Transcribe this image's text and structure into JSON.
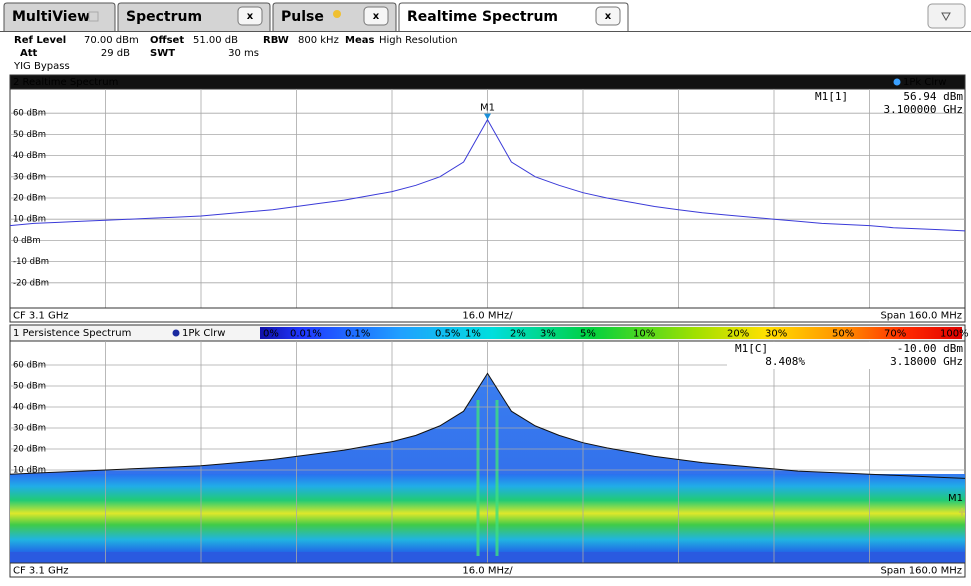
{
  "tabs": [
    {
      "label": "MultiView"
    },
    {
      "label": "Spectrum",
      "close": "x"
    },
    {
      "label": "Pulse",
      "close": "x"
    },
    {
      "label": "Realtime Spectrum",
      "close": "x"
    }
  ],
  "settings": [
    {
      "label": "Ref Level",
      "value": "70.00 dBm"
    },
    {
      "label": "Offset",
      "value": "51.00 dB"
    },
    {
      "label": "RBW",
      "value": "800 kHz"
    },
    {
      "label": "Meas",
      "value": "High Resolution"
    },
    {
      "label": "Att",
      "value": "29 dB"
    },
    {
      "label": "SWT",
      "value": "30 ms"
    }
  ],
  "note": "YIG Bypass",
  "chart_data": [
    {
      "type": "line",
      "title": "2 Realtime Spectrum",
      "x": [
        3.02,
        3.024,
        3.028,
        3.032,
        3.036,
        3.04,
        3.044,
        3.048,
        3.052,
        3.056,
        3.06,
        3.064,
        3.068,
        3.072,
        3.076,
        3.08,
        3.084,
        3.088,
        3.092,
        3.096,
        3.1,
        3.104,
        3.108,
        3.112,
        3.116,
        3.12,
        3.124,
        3.128,
        3.132,
        3.136,
        3.14,
        3.144,
        3.148,
        3.152,
        3.156,
        3.16,
        3.164,
        3.168,
        3.172,
        3.176,
        3.18
      ],
      "xlim": [
        3.02,
        3.18
      ],
      "series": [
        {
          "name": "1Pk Clrw",
          "color": "#3a3ad8",
          "values": [
            7,
            8,
            8.5,
            9,
            9.5,
            10,
            10.5,
            11,
            11.5,
            12.5,
            13.5,
            14.5,
            16,
            17.5,
            19,
            21,
            23,
            26,
            30,
            37,
            56.94,
            37,
            30,
            26,
            22.5,
            20,
            18,
            16,
            14.5,
            13,
            12,
            11,
            10,
            9,
            8,
            7.5,
            7,
            6,
            5.5,
            5,
            4.5
          ]
        }
      ],
      "ylim": [
        -30,
        70
      ],
      "yticks": [
        {
          "value": 60,
          "label": "60 dBm"
        },
        {
          "value": 50,
          "label": "50 dBm"
        },
        {
          "value": 40,
          "label": "40 dBm"
        },
        {
          "value": 30,
          "label": "30 dBm"
        },
        {
          "value": 20,
          "label": "20 dBm"
        },
        {
          "value": 10,
          "label": "10 dBm"
        },
        {
          "value": 0,
          "label": "0 dBm"
        },
        {
          "value": -10,
          "label": "-10 dBm"
        },
        {
          "value": -20,
          "label": "-20 dBm"
        }
      ],
      "grid": true,
      "marker": {
        "tag": "M1",
        "name": "M1[1]",
        "x": 3.1,
        "y": 56.94,
        "y_label": "56.94 dBm",
        "x_label": "3.100000 GHz"
      },
      "footer": {
        "left": "CF 3.1 GHz",
        "center": "16.0 MHz/",
        "right": "Span 160.0 MHz"
      }
    },
    {
      "type": "persistence",
      "title": "1 Persistence Spectrum",
      "x": [
        3.02,
        3.024,
        3.028,
        3.032,
        3.036,
        3.04,
        3.044,
        3.048,
        3.052,
        3.056,
        3.06,
        3.064,
        3.068,
        3.072,
        3.076,
        3.08,
        3.084,
        3.088,
        3.092,
        3.096,
        3.1,
        3.104,
        3.108,
        3.112,
        3.116,
        3.12,
        3.124,
        3.128,
        3.132,
        3.136,
        3.14,
        3.144,
        3.148,
        3.152,
        3.156,
        3.16,
        3.164,
        3.168,
        3.172,
        3.176,
        3.18
      ],
      "xlim": [
        3.02,
        3.18
      ],
      "series": [
        {
          "name": "1Pk Clrw",
          "color": "#111111",
          "values": [
            8,
            8.5,
            9,
            9.5,
            10,
            10.5,
            11,
            11.5,
            12,
            13,
            14,
            15,
            16.5,
            18,
            19.5,
            21.5,
            23.5,
            26.5,
            31,
            38,
            56,
            38,
            31,
            26.5,
            23,
            20.5,
            18.5,
            16.5,
            15,
            13.5,
            12.5,
            11.5,
            10.5,
            9.5,
            9,
            8.5,
            8,
            7.5,
            7,
            6.5,
            6
          ]
        }
      ],
      "ylim": [
        -30,
        70
      ],
      "yticks": [
        {
          "value": 60,
          "label": "60 dBm"
        },
        {
          "value": 50,
          "label": "50 dBm"
        },
        {
          "value": 40,
          "label": "40 dBm"
        },
        {
          "value": 30,
          "label": "30 dBm"
        },
        {
          "value": 20,
          "label": "20 dBm"
        },
        {
          "value": 10,
          "label": "10 dBm"
        }
      ],
      "grid": true,
      "color_scale": [
        "0%",
        "0.01%",
        "0.1%",
        "0.5%",
        "1%",
        "2%",
        "3%",
        "5%",
        "10%",
        "20%",
        "30%",
        "50%",
        "70%",
        "100%"
      ],
      "marker": {
        "tag": "M1",
        "name": "M1[C]",
        "x": 3.18,
        "y": -10,
        "y_label": "-10.00 dBm",
        "density_label": "8.408%",
        "x_label": "3.18000 GHz"
      },
      "footer": {
        "left": "CF 3.1 GHz",
        "center": "16.0 MHz/",
        "right": "Span 160.0 MHz"
      }
    }
  ]
}
